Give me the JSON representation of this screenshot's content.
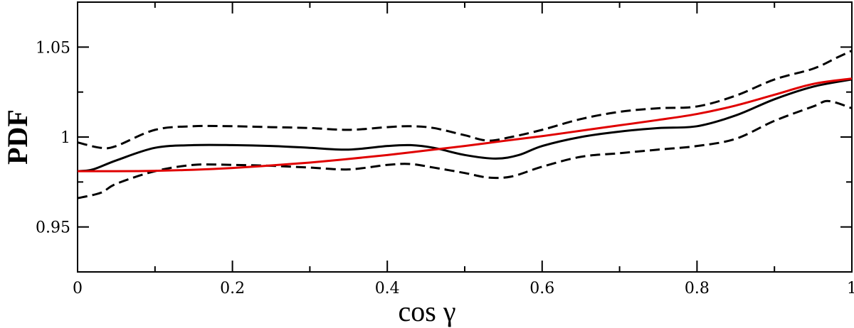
{
  "chart_data": {
    "type": "line",
    "xlabel": "cos γ",
    "ylabel": "PDF",
    "xlim": [
      0,
      1
    ],
    "ylim": [
      0.925,
      1.075
    ],
    "grid": false,
    "legend": "none",
    "x_ticks": [
      0,
      0.2,
      0.4,
      0.6,
      0.8,
      1
    ],
    "x_tick_labels": [
      "0",
      "0.2",
      "0.4",
      "0.6",
      "0.8",
      "1"
    ],
    "x_minor_ticks": [
      0.1,
      0.3,
      0.5,
      0.7,
      0.9
    ],
    "y_ticks": [
      0.95,
      1.0,
      1.05
    ],
    "y_tick_labels": [
      "0.95",
      "1",
      "1.05"
    ],
    "y_minor_ticks": [
      0.975,
      1.025
    ],
    "series": [
      {
        "color": "#000000",
        "style": "solid",
        "x": [
          0,
          0.02,
          0.05,
          0.1,
          0.15,
          0.2,
          0.25,
          0.3,
          0.35,
          0.4,
          0.43,
          0.46,
          0.5,
          0.54,
          0.57,
          0.6,
          0.65,
          0.7,
          0.75,
          0.8,
          0.85,
          0.9,
          0.95,
          1.0
        ],
        "y": [
          0.981,
          0.982,
          0.987,
          0.994,
          0.9955,
          0.9955,
          0.995,
          0.994,
          0.993,
          0.995,
          0.9955,
          0.994,
          0.99,
          0.988,
          0.99,
          0.995,
          1.0,
          1.003,
          1.005,
          1.006,
          1.012,
          1.021,
          1.028,
          1.032
        ]
      },
      {
        "color": "#000000",
        "style": "dashed",
        "x": [
          0,
          0.03,
          0.05,
          0.1,
          0.15,
          0.2,
          0.25,
          0.3,
          0.35,
          0.4,
          0.43,
          0.46,
          0.5,
          0.53,
          0.56,
          0.6,
          0.65,
          0.7,
          0.75,
          0.8,
          0.85,
          0.9,
          0.95,
          0.98,
          1.0
        ],
        "y": [
          0.997,
          0.994,
          0.995,
          1.004,
          1.006,
          1.006,
          1.0055,
          1.005,
          1.004,
          1.0055,
          1.006,
          1.005,
          1.001,
          0.998,
          1.0,
          1.004,
          1.01,
          1.014,
          1.016,
          1.017,
          1.023,
          1.032,
          1.038,
          1.044,
          1.048
        ]
      },
      {
        "color": "#000000",
        "style": "dashed",
        "x": [
          0,
          0.03,
          0.05,
          0.1,
          0.15,
          0.2,
          0.25,
          0.3,
          0.35,
          0.4,
          0.43,
          0.46,
          0.5,
          0.53,
          0.56,
          0.6,
          0.65,
          0.7,
          0.75,
          0.8,
          0.85,
          0.9,
          0.95,
          0.97,
          1.0
        ],
        "y": [
          0.966,
          0.969,
          0.974,
          0.981,
          0.9845,
          0.9845,
          0.984,
          0.983,
          0.982,
          0.9845,
          0.985,
          0.983,
          0.98,
          0.9775,
          0.978,
          0.9835,
          0.989,
          0.991,
          0.993,
          0.995,
          0.999,
          1.009,
          1.017,
          1.02,
          1.016
        ]
      },
      {
        "color": "#e00000",
        "style": "solid",
        "x": [
          0,
          0.05,
          0.1,
          0.15,
          0.2,
          0.25,
          0.3,
          0.35,
          0.4,
          0.45,
          0.5,
          0.55,
          0.6,
          0.65,
          0.7,
          0.75,
          0.8,
          0.85,
          0.9,
          0.95,
          1.0
        ],
        "y": [
          0.981,
          0.981,
          0.9812,
          0.9818,
          0.9828,
          0.9842,
          0.9858,
          0.9878,
          0.99,
          0.9925,
          0.995,
          0.9978,
          1.0005,
          1.0035,
          1.0065,
          1.0095,
          1.0128,
          1.0175,
          1.0235,
          1.0295,
          1.0325
        ]
      }
    ]
  }
}
